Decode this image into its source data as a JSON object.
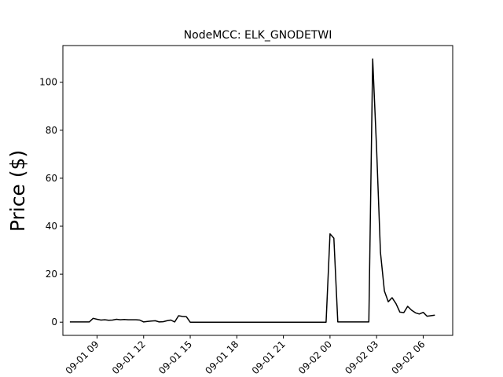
{
  "chart_data": {
    "type": "line",
    "title": "NodeMCC: ELK_GNODETWI",
    "xlabel": "",
    "ylabel": "Price ($)",
    "x_unit": "hours from 2022-09-01 00:00",
    "x_ticks": [
      {
        "label": "09-01 09",
        "hours": 9
      },
      {
        "label": "09-01 12",
        "hours": 12
      },
      {
        "label": "09-01 15",
        "hours": 15
      },
      {
        "label": "09-01 18",
        "hours": 18
      },
      {
        "label": "09-01 21",
        "hours": 21
      },
      {
        "label": "09-02 00",
        "hours": 24
      },
      {
        "label": "09-02 03",
        "hours": 27
      },
      {
        "label": "09-02 06",
        "hours": 30
      }
    ],
    "y_ticks": [
      0,
      20,
      40,
      60,
      80,
      100
    ],
    "xlim": [
      6.8,
      31.9
    ],
    "ylim": [
      -5.5,
      115.3
    ],
    "grid": false,
    "series": [
      {
        "name": "",
        "color": "#000000",
        "x": [
          7.25,
          8.5,
          8.75,
          9.0,
          9.25,
          9.5,
          9.75,
          10.0,
          10.25,
          10.5,
          10.75,
          11.0,
          11.25,
          11.5,
          11.75,
          12.0,
          12.25,
          12.5,
          12.75,
          13.0,
          13.25,
          13.5,
          13.75,
          14.0,
          14.25,
          14.5,
          14.75,
          15.0,
          23.75,
          24.0,
          24.25,
          24.5,
          26.5,
          26.75,
          27.0,
          27.25,
          27.5,
          27.75,
          28.0,
          28.25,
          28.5,
          28.75,
          29.0,
          29.25,
          29.5,
          29.75,
          30.0,
          30.25,
          30.75
        ],
        "y": [
          0.1,
          0.1,
          1.6,
          1.2,
          0.9,
          1.0,
          0.8,
          0.9,
          1.2,
          1.0,
          1.1,
          1.0,
          1.0,
          1.0,
          0.9,
          0.1,
          0.3,
          0.5,
          0.6,
          0.1,
          0.2,
          0.6,
          0.9,
          0.1,
          2.7,
          2.4,
          2.3,
          0.0,
          0.0,
          36.8,
          35.0,
          0.1,
          0.1,
          109.7,
          72.0,
          29.0,
          13.0,
          8.5,
          10.2,
          7.7,
          4.2,
          4.0,
          6.6,
          5.0,
          3.9,
          3.4,
          4.1,
          2.5,
          2.9
        ]
      }
    ]
  }
}
